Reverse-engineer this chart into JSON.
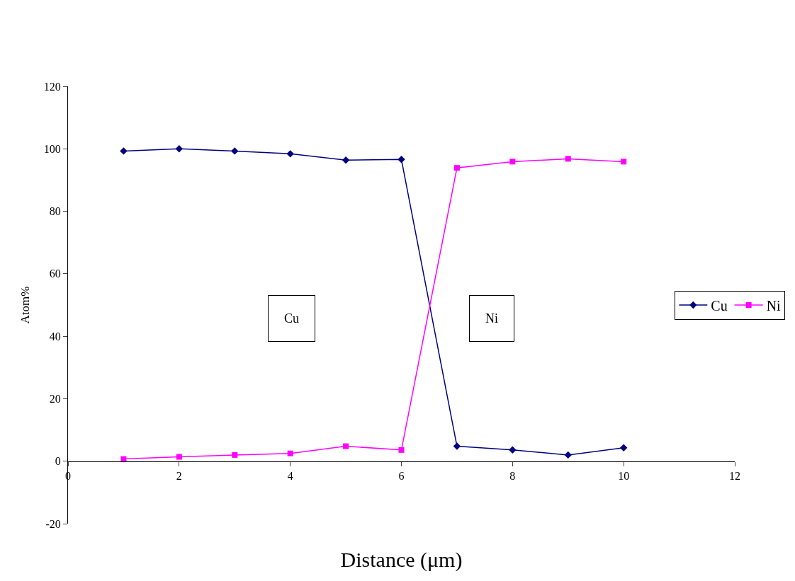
{
  "chart_data": {
    "type": "line",
    "xlabel": "Distance (μm)",
    "ylabel": "Atom%",
    "x": [
      1,
      2,
      3,
      4,
      5,
      6,
      7,
      8,
      9,
      10
    ],
    "series": [
      {
        "name": "Cu",
        "color": "#000080",
        "marker": "diamond",
        "values": [
          99.3,
          100,
          99.3,
          98.4,
          96.4,
          96.6,
          4.8,
          3.6,
          2.0,
          4.3
        ]
      },
      {
        "name": "Ni",
        "color": "#ff00ff",
        "marker": "square",
        "values": [
          0.7,
          1.4,
          2.0,
          2.5,
          4.8,
          3.6,
          93.9,
          95.9,
          96.8,
          95.9
        ]
      }
    ],
    "xlim": [
      0,
      12
    ],
    "xticks": [
      0,
      2,
      4,
      6,
      8,
      10,
      12
    ],
    "ylim": [
      -20,
      120
    ],
    "yticks": [
      -20,
      0,
      20,
      40,
      60,
      80,
      100,
      120
    ],
    "annotations": [
      "Cu",
      "Ni"
    ],
    "legend": "right",
    "line_style": "solid"
  }
}
